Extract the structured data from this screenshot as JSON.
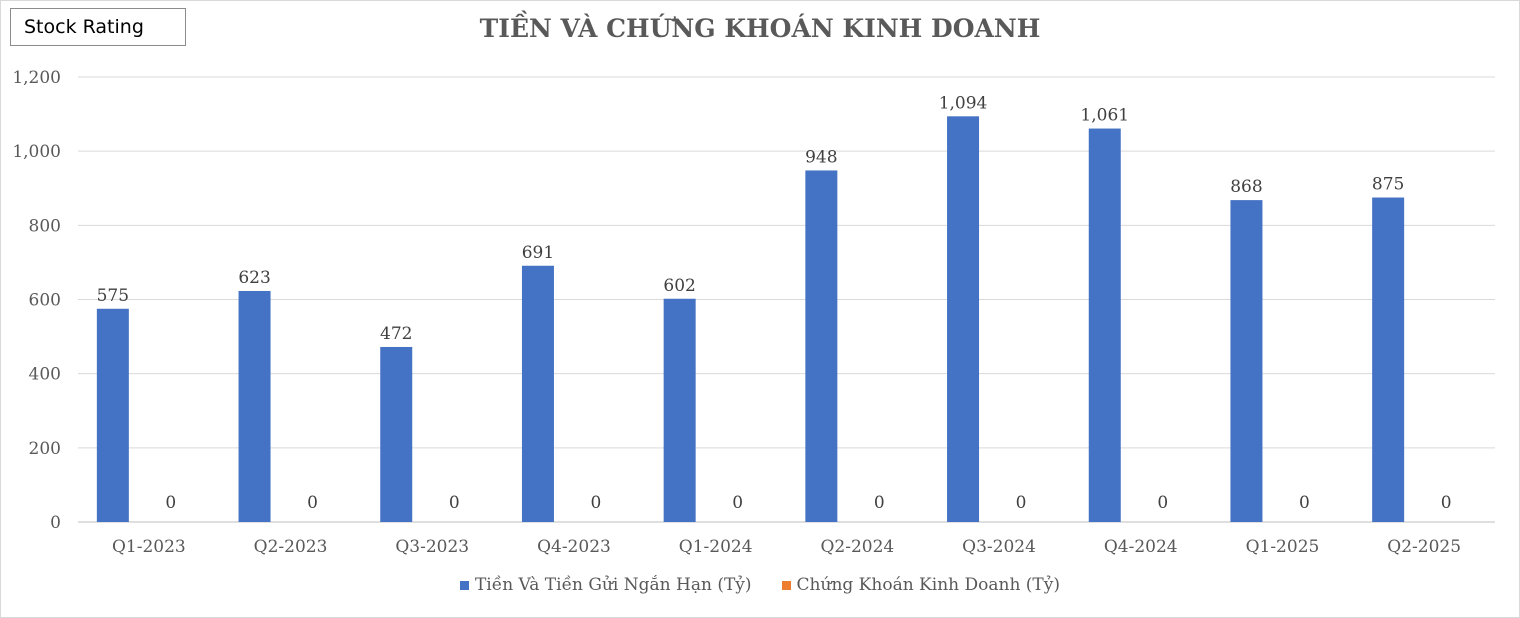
{
  "badge": {
    "label": "Stock Rating"
  },
  "chart_data": {
    "type": "bar",
    "title": "TIỀN VÀ CHỨNG KHOÁN KINH DOANH",
    "xlabel": "",
    "ylabel": "",
    "categories": [
      "Q1-2023",
      "Q2-2023",
      "Q3-2023",
      "Q4-2023",
      "Q1-2024",
      "Q2-2024",
      "Q3-2024",
      "Q4-2024",
      "Q1-2025",
      "Q2-2025"
    ],
    "series": [
      {
        "name": "Tiền Và Tiền Gửi Ngắn Hạn (Tỷ)",
        "color": "#4472c4",
        "values": [
          575,
          623,
          472,
          691,
          602,
          948,
          1094,
          1061,
          868,
          875
        ]
      },
      {
        "name": "Chứng Khoán Kinh Doanh (Tỷ)",
        "color": "#ed7d31",
        "values": [
          0,
          0,
          0,
          0,
          0,
          0,
          0,
          0,
          0,
          0
        ]
      }
    ],
    "data_labels": [
      [
        "575",
        "623",
        "472",
        "691",
        "602",
        "948",
        "1,094",
        "1,061",
        "868",
        "875"
      ],
      [
        "0",
        "0",
        "0",
        "0",
        "0",
        "0",
        "0",
        "0",
        "0",
        "0"
      ]
    ],
    "ylim": [
      0,
      1200
    ],
    "yticks": [
      0,
      200,
      400,
      600,
      800,
      1000,
      1200
    ],
    "ytick_labels": [
      "0",
      "200",
      "400",
      "600",
      "800",
      "1,000",
      "1,200"
    ],
    "grid": true,
    "legend_position": "bottom"
  }
}
